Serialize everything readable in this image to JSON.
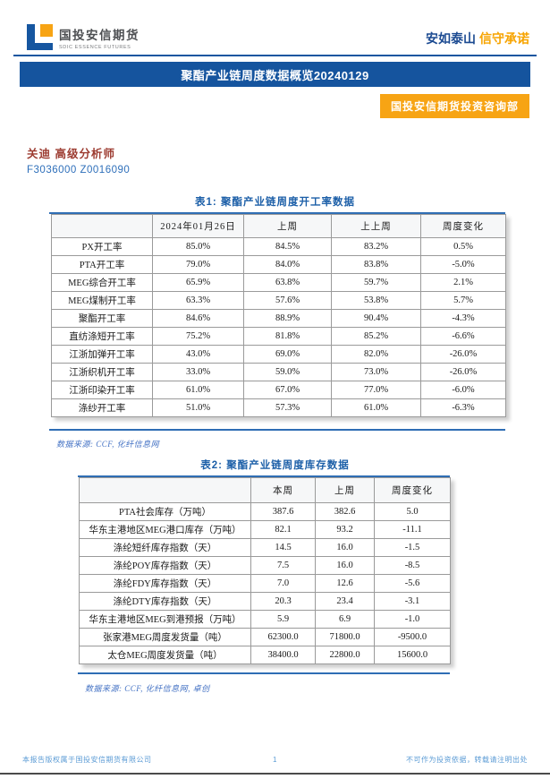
{
  "header": {
    "company_name": "国投安信期货",
    "company_name_en": "SDIC ESSENCE FUTURES",
    "slogan_blue": "安如泰山",
    "slogan_orange": "信守承诺"
  },
  "banner_title": "聚酯产业链周度数据概览20240129",
  "department_label": "国投安信期货投资咨询部",
  "analyst": {
    "name_and_title": "关迪 高级分析师",
    "license_numbers": "F3036000 Z0016090"
  },
  "table1": {
    "title": "表1: 聚酯产业链周度开工率数据",
    "headers": [
      "",
      "2024年01月26日",
      "上周",
      "上上周",
      "周度变化"
    ],
    "rows": [
      [
        "PX开工率",
        "85.0%",
        "84.5%",
        "83.2%",
        "0.5%"
      ],
      [
        "PTA开工率",
        "79.0%",
        "84.0%",
        "83.8%",
        "-5.0%"
      ],
      [
        "MEG综合开工率",
        "65.9%",
        "63.8%",
        "59.7%",
        "2.1%"
      ],
      [
        "MEG煤制开工率",
        "63.3%",
        "57.6%",
        "53.8%",
        "5.7%"
      ],
      [
        "聚酯开工率",
        "84.6%",
        "88.9%",
        "90.4%",
        "-4.3%"
      ],
      [
        "直纺涤短开工率",
        "75.2%",
        "81.8%",
        "85.2%",
        "-6.6%"
      ],
      [
        "江浙加弹开工率",
        "43.0%",
        "69.0%",
        "82.0%",
        "-26.0%"
      ],
      [
        "江浙织机开工率",
        "33.0%",
        "59.0%",
        "73.0%",
        "-26.0%"
      ],
      [
        "江浙印染开工率",
        "61.0%",
        "67.0%",
        "77.0%",
        "-6.0%"
      ],
      [
        "涤纱开工率",
        "51.0%",
        "57.3%",
        "61.0%",
        "-6.3%"
      ]
    ],
    "source": "数据来源: CCF, 化纤信息网"
  },
  "table2": {
    "title": "表2: 聚酯产业链周度库存数据",
    "headers": [
      "",
      "本周",
      "上周",
      "周度变化"
    ],
    "rows": [
      [
        "PTA社会库存（万吨）",
        "387.6",
        "382.6",
        "5.0"
      ],
      [
        "华东主港地区MEG港口库存（万吨）",
        "82.1",
        "93.2",
        "-11.1"
      ],
      [
        "涤纶短纤库存指数（天）",
        "14.5",
        "16.0",
        "-1.5"
      ],
      [
        "涤纶POY库存指数（天）",
        "7.5",
        "16.0",
        "-8.5"
      ],
      [
        "涤纶FDY库存指数（天）",
        "7.0",
        "12.6",
        "-5.6"
      ],
      [
        "涤纶DTY库存指数（天）",
        "20.3",
        "23.4",
        "-3.1"
      ],
      [
        "华东主港地区MEG到港预报（万吨）",
        "5.9",
        "6.9",
        "-1.0"
      ],
      [
        "张家港MEG周度发货量（吨）",
        "62300.0",
        "71800.0",
        "-9500.0"
      ],
      [
        "太仓MEG周度发货量（吨）",
        "38400.0",
        "22800.0",
        "15600.0"
      ]
    ],
    "source": "数据来源: CCF, 化纤信息网, 卓创"
  },
  "footer": {
    "left": "本报告版权属于国投安信期货有限公司",
    "page_number": "1",
    "right": "不可作为投资依据，转载请注明出处"
  },
  "colors": {
    "brand_blue": "#15549e",
    "brand_orange": "#f7a414",
    "title_blue": "#1c5fa8",
    "analyst_red": "#9c3b30",
    "source_blue": "#4472c4",
    "footer_blue": "#5b9bd5"
  }
}
